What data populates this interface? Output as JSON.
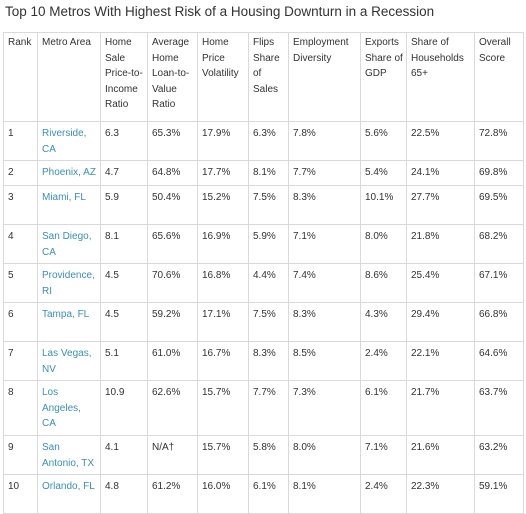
{
  "title": "Top 10 Metros With Highest Risk of a Housing Downturn in a Recession",
  "columns": [
    "Rank",
    "Metro Area",
    "Home Sale Price-to-Income Ratio",
    "Average Home Loan-to-Value Ratio",
    "Home Price Volatility",
    "Flips Share of Sales",
    "Employment Diversity",
    "Exports Share of GDP",
    "Share of Households 65+",
    "Overall Score"
  ],
  "rows": [
    [
      "1",
      "Riverside, CA",
      "6.3",
      "65.3%",
      "17.9%",
      "6.3%",
      "7.8%",
      "5.6%",
      "22.5%",
      "72.8%"
    ],
    [
      "2",
      "Phoenix, AZ",
      "4.7",
      "64.8%",
      "17.7%",
      "8.1%",
      "7.7%",
      "5.4%",
      "24.1%",
      "69.8%"
    ],
    [
      "3",
      "Miami, FL",
      "5.9",
      "50.4%",
      "15.2%",
      "7.5%",
      "8.3%",
      "10.1%",
      "27.7%",
      "69.5%"
    ],
    [
      "4",
      "San Diego, CA",
      "8.1",
      "65.6%",
      "16.9%",
      "5.9%",
      "7.1%",
      "8.0%",
      "21.8%",
      "68.2%"
    ],
    [
      "5",
      "Providence, RI",
      "4.5",
      "70.6%",
      "16.8%",
      "4.4%",
      "7.4%",
      "8.6%",
      "25.4%",
      "67.1%"
    ],
    [
      "6",
      "Tampa, FL",
      "4.5",
      "59.2%",
      "17.1%",
      "7.5%",
      "8.3%",
      "4.3%",
      "29.4%",
      "66.8%"
    ],
    [
      "7",
      "Las Vegas, NV",
      "5.1",
      "61.0%",
      "16.7%",
      "8.3%",
      "8.5%",
      "2.4%",
      "22.1%",
      "64.6%"
    ],
    [
      "8",
      "Los Angeles, CA",
      "10.9",
      "62.6%",
      "15.7%",
      "7.7%",
      "7.3%",
      "6.1%",
      "21.7%",
      "63.7%"
    ],
    [
      "9",
      "San Antonio, TX",
      "4.1",
      "N/A†",
      "15.7%",
      "5.8%",
      "8.0%",
      "7.1%",
      "21.6%",
      "63.2%"
    ],
    [
      "10",
      "Orlando, FL",
      "4.8",
      "61.2%",
      "16.0%",
      "6.1%",
      "8.1%",
      "2.4%",
      "22.3%",
      "59.1%"
    ]
  ]
}
